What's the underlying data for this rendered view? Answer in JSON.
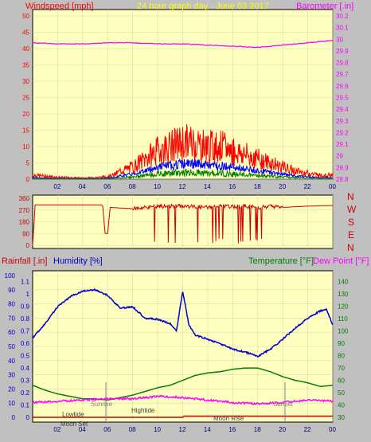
{
  "panel1": {
    "left_title": "Windspeed [mph]",
    "center_title": "24 hour graph day - June 03 2017",
    "right_title": "Barometer [.in]"
  },
  "panel3": {
    "rain_title": "Rainfall [.in]",
    "hum_title": "Humidity [%]",
    "temp_title": "Temperature [°F]",
    "dew_title": "Dew Point [°F]"
  },
  "events": {
    "sunrise": "Sunrise",
    "sunset": "Sunset",
    "lowtide": "Lowtide",
    "hightide": "Hightide",
    "moonset": "Moon Set",
    "moonrise": "Moon Rise"
  },
  "directions": [
    "N",
    "W",
    "S",
    "E",
    "N"
  ],
  "colors": {
    "plot_bg": "#ffffc0",
    "frame": "#c0c0c0",
    "wind": "#ff0000",
    "gust_blue": "#0000ff",
    "gust_green": "#008000",
    "barometer": "#ff00ff",
    "humidity": "#0000cc",
    "temperature": "#008000",
    "dewpoint": "#ff00ff",
    "rain": "#cc0000",
    "title_yellow": "#ffff00"
  },
  "chart_data": [
    {
      "type": "line",
      "xticks": [
        "02",
        "04",
        "06",
        "08",
        "10",
        "12",
        "14",
        "16",
        "18",
        "20",
        "22",
        "00"
      ],
      "yticks_left": [
        "0",
        "5",
        "10",
        "15",
        "20",
        "25",
        "30",
        "35",
        "40",
        "45",
        "50"
      ],
      "yticks_right": [
        "28.8",
        "28.9",
        "29",
        "29.1",
        "29.2",
        "29.3",
        "29.4",
        "29.5",
        "29.6",
        "29.7",
        "29.8",
        "29.9",
        "30",
        "30.1",
        "30.2"
      ],
      "ylim_left": [
        0,
        50
      ],
      "ylim_right": [
        28.8,
        30.2
      ],
      "series": [
        {
          "name": "Windspeed",
          "x": [
            0,
            2,
            4,
            5.5,
            6.5,
            7,
            8,
            9,
            10,
            11,
            12,
            13,
            14,
            15,
            16,
            17,
            18,
            19,
            20,
            21,
            22,
            23,
            24
          ],
          "values": [
            1,
            0.5,
            0.3,
            0.5,
            1,
            2,
            3,
            5,
            7,
            8,
            9,
            9,
            8,
            8,
            7,
            6,
            5,
            4,
            3,
            2,
            1.5,
            1,
            1
          ]
        },
        {
          "name": "Barometer",
          "x": [
            0,
            2,
            4,
            6,
            8,
            10,
            12,
            14,
            16,
            18,
            20,
            22,
            24
          ],
          "values": [
            29.97,
            29.96,
            29.96,
            29.97,
            29.97,
            29.96,
            29.96,
            29.95,
            29.94,
            29.93,
            29.95,
            29.97,
            29.99
          ]
        }
      ]
    },
    {
      "type": "line",
      "yticks": [
        "0",
        "90",
        "180",
        "270",
        "360"
      ],
      "ylim": [
        0,
        360
      ],
      "series": [
        {
          "name": "Wind direction",
          "x": [
            0,
            0.2,
            5.5,
            5.6,
            5.8,
            6.0,
            6.2,
            8,
            9,
            10,
            11,
            12,
            13,
            14,
            15,
            16,
            17,
            18,
            19,
            20,
            22,
            24
          ],
          "values": [
            0,
            310,
            310,
            300,
            90,
            90,
            290,
            280,
            290,
            295,
            300,
            300,
            295,
            290,
            300,
            295,
            300,
            290,
            300,
            290,
            300,
            305
          ]
        }
      ]
    },
    {
      "type": "line",
      "xticks": [
        "02",
        "04",
        "06",
        "08",
        "10",
        "12",
        "14",
        "16",
        "18",
        "20",
        "22",
        "00"
      ],
      "yticks_rain": [
        "0",
        "0.1",
        "0.2",
        "0.3",
        "0.4",
        "0.5",
        "0.6",
        "0.7",
        "0.8",
        "0.9",
        "1",
        "1.1"
      ],
      "yticks_hum": [
        "0",
        "10",
        "20",
        "30",
        "40",
        "50",
        "60",
        "70",
        "80",
        "90",
        "100"
      ],
      "yticks_temp": [
        "30",
        "40",
        "50",
        "60",
        "70",
        "80",
        "90",
        "100",
        "110",
        "120",
        "130",
        "140"
      ],
      "ylim_hum": [
        0,
        100
      ],
      "ylim_temp": [
        30,
        145
      ],
      "ylim_rain": [
        0,
        1.15
      ],
      "series": [
        {
          "name": "Humidity",
          "x": [
            0,
            1,
            2,
            3,
            4,
            5,
            6,
            7,
            8,
            9,
            10,
            11,
            11.5,
            12,
            12.5,
            13,
            14,
            15,
            16,
            17,
            18,
            19,
            20,
            21,
            22,
            23,
            23.5,
            24
          ],
          "values": [
            56,
            66,
            78,
            85,
            89,
            90,
            86,
            77,
            78,
            70,
            69,
            66,
            61,
            89,
            65,
            58,
            55,
            52,
            48,
            46,
            43,
            48,
            55,
            63,
            70,
            75,
            76,
            65
          ]
        },
        {
          "name": "Temperature",
          "x": [
            0,
            1,
            2,
            3,
            4,
            5,
            6,
            7,
            8,
            9,
            10,
            11,
            12,
            13,
            14,
            15,
            16,
            17,
            18,
            19,
            20,
            21,
            22,
            23,
            24
          ],
          "values": [
            56,
            52,
            49,
            47,
            45,
            45,
            44,
            46,
            48,
            51,
            54,
            56,
            60,
            64,
            66,
            67,
            69,
            70,
            70,
            67,
            63,
            60,
            58,
            55,
            56
          ]
        },
        {
          "name": "Dew Point",
          "x": [
            0,
            2,
            4,
            6,
            8,
            10,
            12,
            14,
            16,
            18,
            20,
            22,
            24
          ],
          "values": [
            42,
            43,
            44,
            45,
            45,
            47,
            46,
            44,
            42,
            41,
            42,
            44,
            43
          ]
        },
        {
          "name": "Rainfall",
          "x": [
            0,
            12,
            12.01,
            24
          ],
          "values": [
            0,
            0,
            0.01,
            0.01
          ]
        }
      ]
    }
  ]
}
